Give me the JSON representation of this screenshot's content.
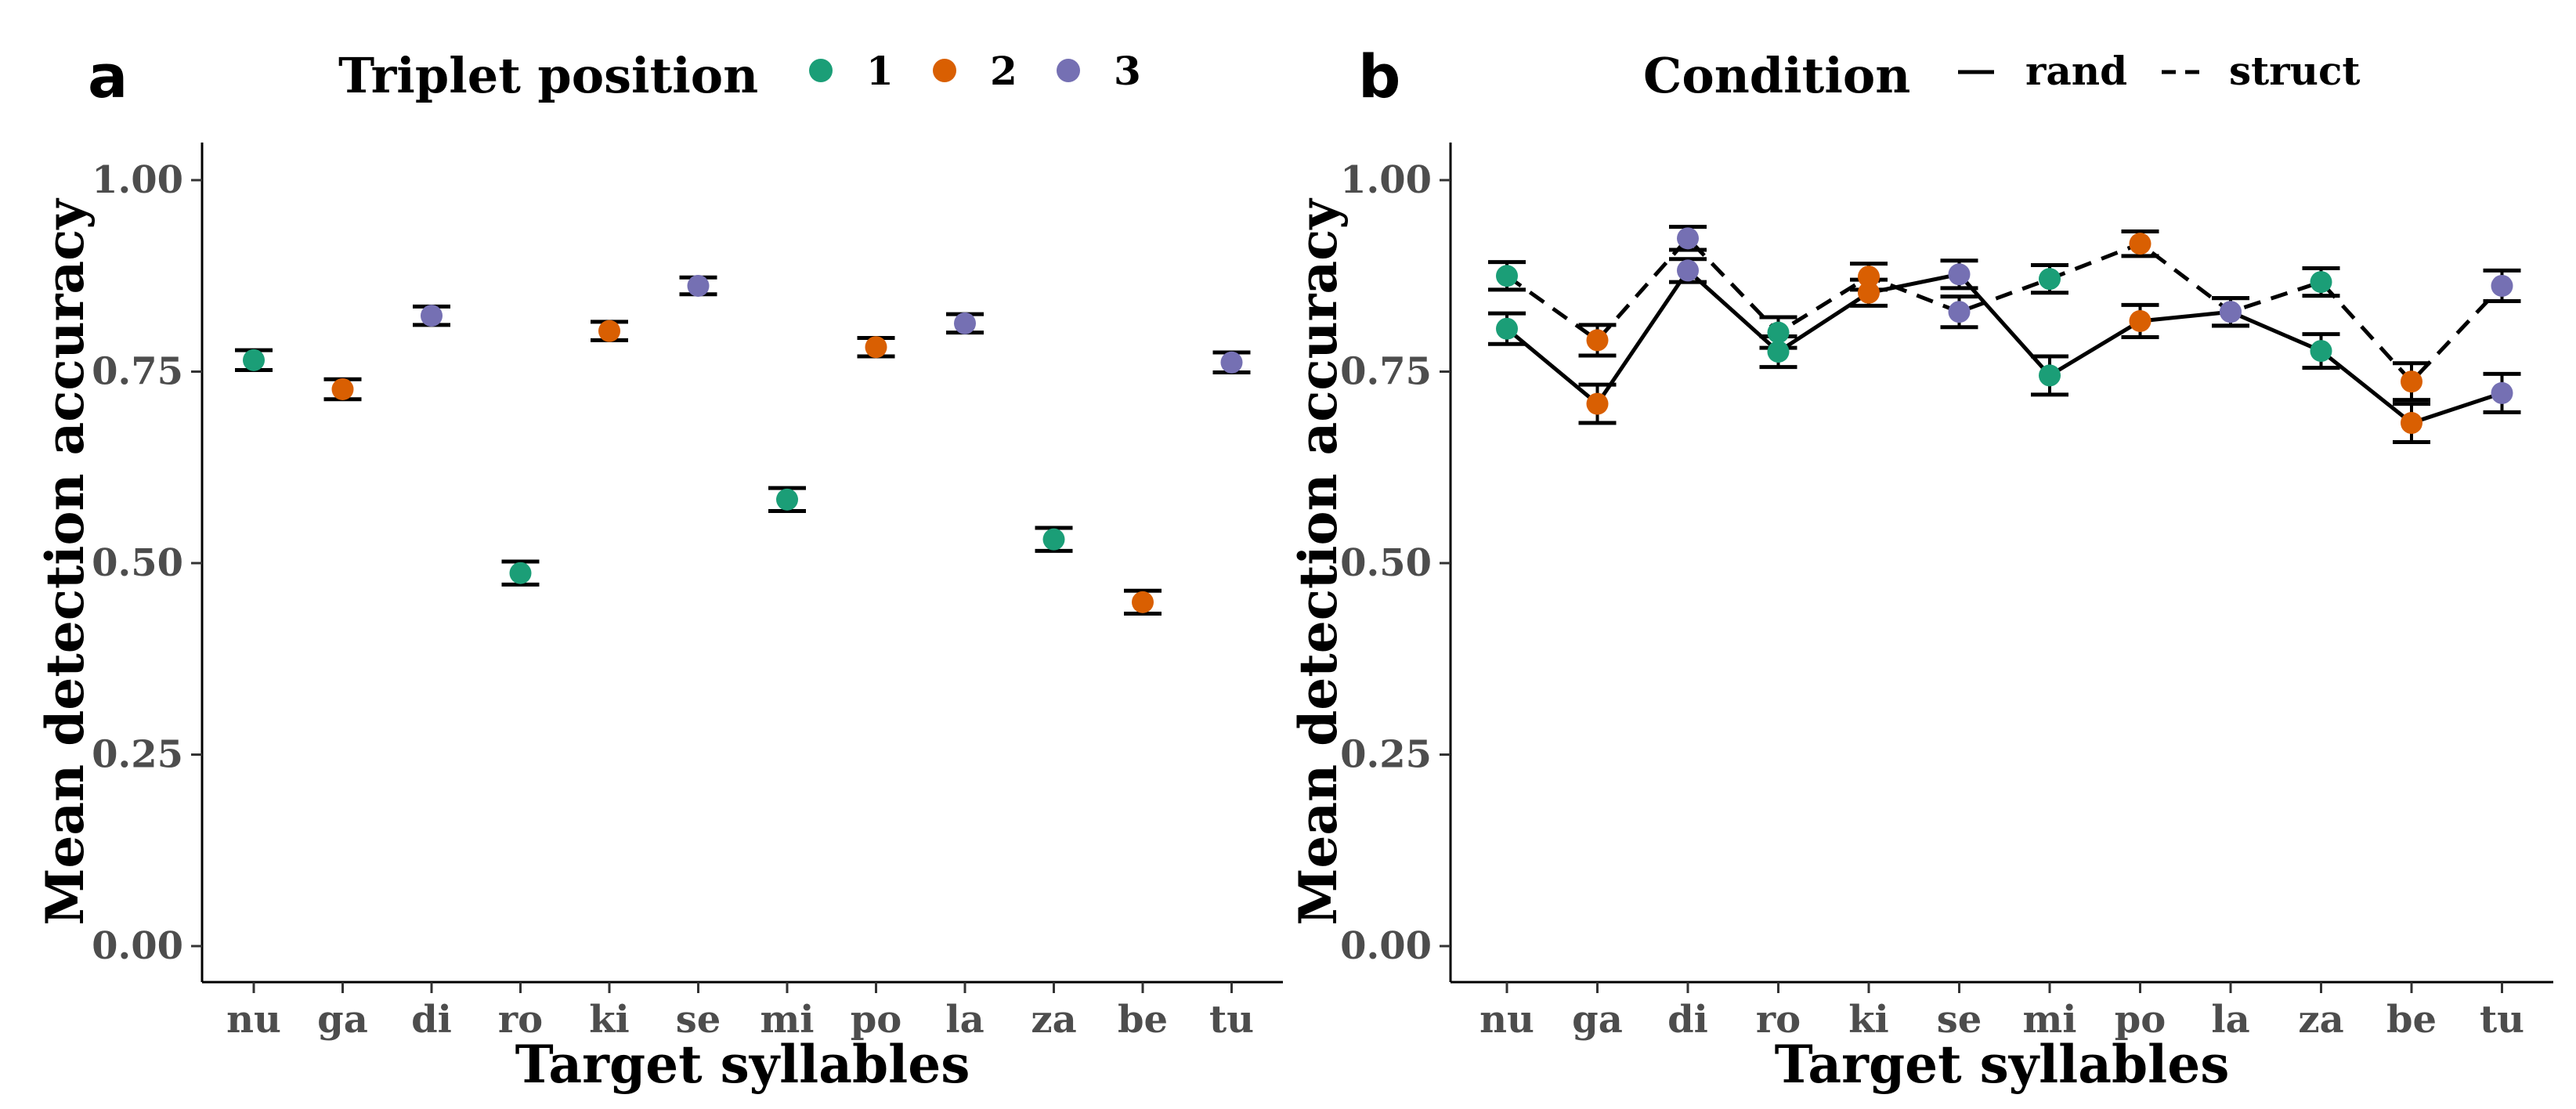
{
  "colors": {
    "1": "#1b9e77",
    "2": "#d95f02",
    "3": "#7570b3"
  },
  "panels": {
    "a": {
      "letter": "a",
      "legend_title": "Triplet position",
      "legend_items": [
        "1",
        "2",
        "3"
      ],
      "xlabel": "Target syllables",
      "ylabel": "Mean detection accuracy"
    },
    "b": {
      "letter": "b",
      "legend_title": "Condition",
      "legend_items": [
        "rand",
        "struct"
      ],
      "xlabel": "Target syllables",
      "ylabel": "Mean detection accuracy"
    }
  },
  "chart_data": [
    {
      "type": "scatter",
      "title": "",
      "xlabel": "Target syllables",
      "ylabel": "Mean detection accuracy",
      "ylim": [
        0,
        1
      ],
      "yticks": [
        "0.00",
        "0.25",
        "0.50",
        "0.75",
        "1.00"
      ],
      "grid": false,
      "legend_position": "top",
      "categories": [
        "nu",
        "ga",
        "di",
        "ro",
        "ki",
        "se",
        "mi",
        "po",
        "la",
        "za",
        "be",
        "tu"
      ],
      "points": [
        {
          "x": "nu",
          "y": 0.765,
          "lo": 0.752,
          "hi": 0.778,
          "pos": "1"
        },
        {
          "x": "ga",
          "y": 0.727,
          "lo": 0.714,
          "hi": 0.74,
          "pos": "2"
        },
        {
          "x": "di",
          "y": 0.823,
          "lo": 0.811,
          "hi": 0.835,
          "pos": "3"
        },
        {
          "x": "ro",
          "y": 0.487,
          "lo": 0.472,
          "hi": 0.502,
          "pos": "1"
        },
        {
          "x": "ki",
          "y": 0.803,
          "lo": 0.791,
          "hi": 0.815,
          "pos": "2"
        },
        {
          "x": "se",
          "y": 0.862,
          "lo": 0.851,
          "hi": 0.873,
          "pos": "3"
        },
        {
          "x": "mi",
          "y": 0.583,
          "lo": 0.568,
          "hi": 0.598,
          "pos": "1"
        },
        {
          "x": "po",
          "y": 0.782,
          "lo": 0.77,
          "hi": 0.794,
          "pos": "2"
        },
        {
          "x": "la",
          "y": 0.813,
          "lo": 0.801,
          "hi": 0.825,
          "pos": "3"
        },
        {
          "x": "za",
          "y": 0.531,
          "lo": 0.516,
          "hi": 0.546,
          "pos": "1"
        },
        {
          "x": "be",
          "y": 0.449,
          "lo": 0.434,
          "hi": 0.464,
          "pos": "2"
        },
        {
          "x": "tu",
          "y": 0.762,
          "lo": 0.749,
          "hi": 0.775,
          "pos": "3"
        }
      ]
    },
    {
      "type": "line",
      "title": "",
      "xlabel": "Target syllables",
      "ylabel": "Mean detection accuracy",
      "ylim": [
        0,
        1
      ],
      "yticks": [
        "0.00",
        "0.25",
        "0.50",
        "0.75",
        "1.00"
      ],
      "grid": false,
      "legend_position": "top",
      "categories": [
        "nu",
        "ga",
        "di",
        "ro",
        "ki",
        "se",
        "mi",
        "po",
        "la",
        "za",
        "be",
        "tu"
      ],
      "positions": [
        "1",
        "2",
        "3",
        "1",
        "2",
        "3",
        "1",
        "2",
        "3",
        "1",
        "2",
        "3"
      ],
      "series": [
        {
          "name": "rand",
          "linestyle": "solid",
          "values": [
            0.806,
            0.708,
            0.882,
            0.776,
            0.853,
            0.877,
            0.745,
            0.816,
            0.828,
            0.777,
            0.683,
            0.722
          ],
          "lo": [
            0.786,
            0.683,
            0.867,
            0.756,
            0.836,
            0.859,
            0.72,
            0.795,
            0.81,
            0.755,
            0.658,
            0.697
          ],
          "hi": [
            0.826,
            0.733,
            0.897,
            0.796,
            0.87,
            0.895,
            0.77,
            0.837,
            0.846,
            0.799,
            0.708,
            0.747
          ]
        },
        {
          "name": "struct",
          "linestyle": "dashed",
          "values": [
            0.875,
            0.791,
            0.924,
            0.801,
            0.874,
            0.828,
            0.871,
            0.917,
            0.828,
            0.867,
            0.737,
            0.862
          ],
          "lo": [
            0.857,
            0.771,
            0.909,
            0.781,
            0.857,
            0.808,
            0.853,
            0.901,
            0.81,
            0.849,
            0.713,
            0.842
          ],
          "hi": [
            0.893,
            0.811,
            0.939,
            0.821,
            0.891,
            0.848,
            0.889,
            0.933,
            0.846,
            0.885,
            0.761,
            0.882
          ]
        }
      ]
    }
  ]
}
